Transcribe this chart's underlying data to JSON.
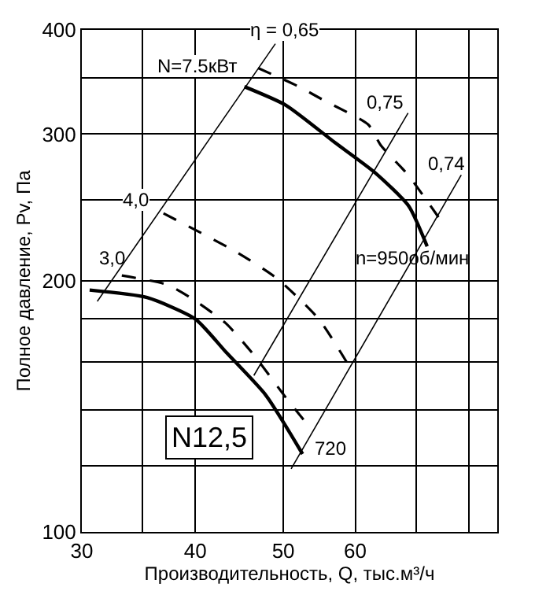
{
  "chart_data": {
    "type": "line",
    "xlabel": "Производительность, Q, тыс.м³/ч",
    "ylabel": "Полное давление, Pv, Па",
    "log": "xy",
    "grid": true,
    "marker": "none",
    "xlim": [
      30,
      86
    ],
    "ylim": [
      100,
      400
    ],
    "xticks": [
      30,
      {
        "value": 35,
        "label": null
      },
      40,
      50,
      60,
      {
        "value": 70,
        "label": null
      },
      {
        "value": 80,
        "label": null
      }
    ],
    "yticks": [
      100,
      {
        "value": 120,
        "label": null
      },
      {
        "value": 140,
        "label": null
      },
      {
        "value": 160,
        "label": null
      },
      {
        "value": 180,
        "label": null
      },
      200,
      {
        "value": 250,
        "label": null
      },
      300,
      {
        "value": 350,
        "label": null
      },
      400
    ],
    "series": [
      {
        "color": "#000000",
        "line_style": "solid",
        "x": [
          45.3,
          50.3,
          57.0,
          63.0,
          68.7,
          72.0
        ],
        "values": [
          342,
          325,
          293,
          270,
          246,
          220
        ]
      },
      {
        "color": "#000000",
        "line_style": "solid",
        "x": [
          30.6,
          35.4,
          40.0,
          43.3,
          47.8,
          52.5
        ],
        "values": [
          195,
          191,
          180,
          164,
          146,
          124
        ]
      },
      {
        "color": "#000000",
        "line_style": "dashed",
        "x": [
          46.9,
          52.0,
          55.5,
          62.0,
          64.0,
          68.6,
          71.5,
          74.4
        ],
        "values": [
          360,
          342,
          329,
          308,
          291,
          268,
          252,
          237
        ]
      },
      {
        "color": "#000000",
        "line_style": "dashed",
        "x": [
          36.9,
          44.6,
          49.3,
          54.7,
          59.3
        ],
        "values": [
          241,
          216,
          201,
          180,
          157
        ]
      },
      {
        "color": "#000000",
        "line_style": "dashed",
        "x": [
          33.2,
          37.2,
          39.5,
          43.2,
          46.4,
          50.3,
          53.6
        ],
        "values": [
          203,
          198,
          191,
          178,
          163,
          145,
          133
        ]
      },
      {
        "color": "#000000",
        "line_style": "solid",
        "x": [
          31.2,
          49.0
        ],
        "values": [
          189,
          385
        ]
      },
      {
        "color": "#000000",
        "line_style": "solid",
        "x": [
          46.4,
          68.6
        ],
        "values": [
          154,
          318
        ]
      },
      {
        "color": "#000000",
        "line_style": "solid",
        "x": [
          51.0,
          78.5
        ],
        "values": [
          119,
          268
        ]
      }
    ],
    "annotations": [
      "η = 0,65",
      "N=7.5кВт",
      "0,75",
      "0,74",
      "4,0",
      "3,0",
      "n=950об/мин",
      "720",
      "N12,5"
    ]
  }
}
